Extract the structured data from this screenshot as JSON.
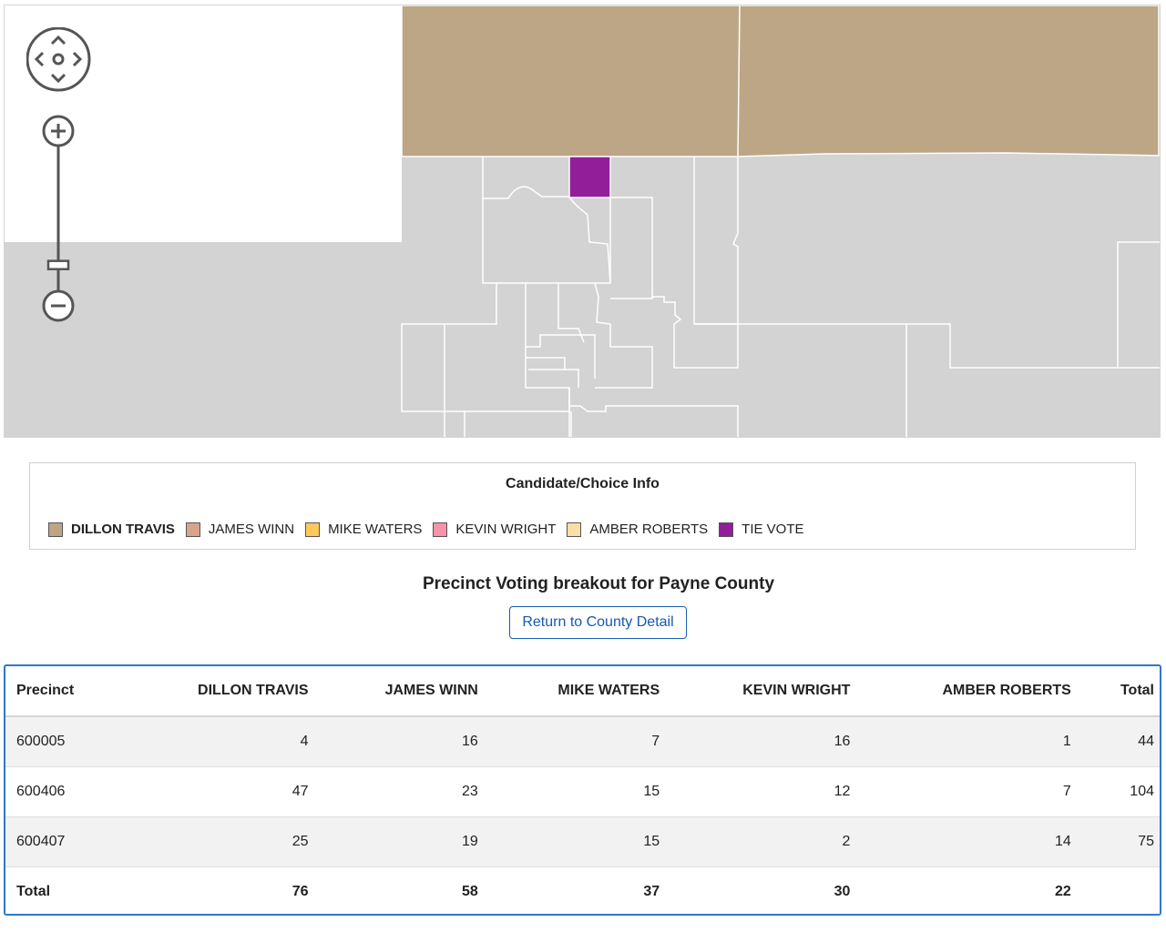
{
  "colors": {
    "dillon_travis": "#bca686",
    "james_winn": "#d6a68a",
    "mike_waters": "#ffc85a",
    "kevin_wright": "#f993ab",
    "amber_roberts": "#f7dfa7",
    "tie_vote": "#921e9a",
    "no_data": "#d3d3d3",
    "accent": "#2f78c8"
  },
  "map": {
    "controls": [
      "pan-icon",
      "zoom-in-icon",
      "zoom-slider",
      "zoom-out-icon"
    ],
    "zoom_level": 0.18
  },
  "legend": {
    "title": "Candidate/Choice Info",
    "items": [
      {
        "label": "DILLON TRAVIS",
        "color": "#bca686",
        "leading": true
      },
      {
        "label": "JAMES WINN",
        "color": "#d6a68a"
      },
      {
        "label": "MIKE WATERS",
        "color": "#ffc85a"
      },
      {
        "label": "KEVIN WRIGHT",
        "color": "#f993ab"
      },
      {
        "label": "AMBER ROBERTS",
        "color": "#f7dfa7"
      },
      {
        "label": "TIE VOTE",
        "color": "#921e9a"
      }
    ]
  },
  "breakout": {
    "title": "Precinct Voting breakout for Payne County",
    "return_label": "Return to County Detail"
  },
  "table": {
    "columns": [
      "Precinct",
      "DILLON TRAVIS",
      "JAMES WINN",
      "MIKE WATERS",
      "KEVIN WRIGHT",
      "AMBER ROBERTS",
      "Total"
    ],
    "rows": [
      [
        "600005",
        "4",
        "16",
        "7",
        "16",
        "1",
        "44"
      ],
      [
        "600406",
        "47",
        "23",
        "15",
        "12",
        "7",
        "104"
      ],
      [
        "600407",
        "25",
        "19",
        "15",
        "2",
        "14",
        "75"
      ]
    ],
    "total": [
      "Total",
      "76",
      "58",
      "37",
      "30",
      "22",
      ""
    ]
  }
}
